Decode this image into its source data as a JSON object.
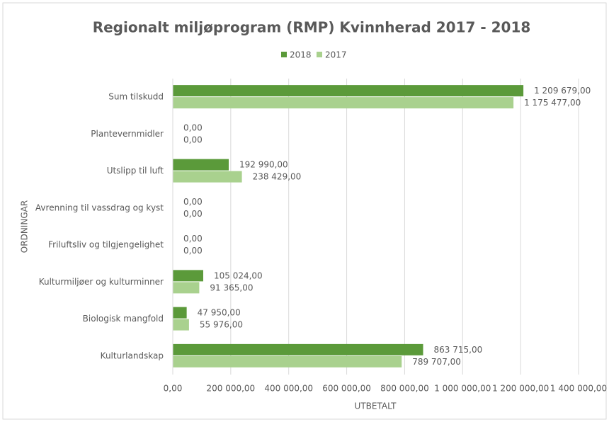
{
  "chart_data": {
    "type": "bar",
    "orientation": "horizontal",
    "title": "Regionalt miljøprogram (RMP)  Kvinnherad 2017 - 2018",
    "x_label": "UTBETALT",
    "y_label": "ORDNINGAR",
    "categories": [
      "Sum tilskudd",
      "Plantevernmidler",
      "Utslipp til luft",
      "Avrenning til vassdrag og kyst",
      "Friluftsliv og tilgjengelighet",
      "Kulturmiljøer og kulturminner",
      "Biologisk mangfold",
      "Kulturlandskap"
    ],
    "series": [
      {
        "name": "2018",
        "color": "#5b9a3a",
        "values": [
          1209679,
          0,
          192990,
          0,
          0,
          105024,
          47950,
          863715
        ],
        "value_labels": [
          "1 209 679,00",
          "0,00",
          "192 990,00",
          "0,00",
          "0,00",
          "105 024,00",
          "47 950,00",
          "863 715,00"
        ]
      },
      {
        "name": "2017",
        "color": "#a9d18e",
        "values": [
          1175477,
          0,
          238429,
          0,
          0,
          91365,
          55976,
          789707
        ],
        "value_labels": [
          "1 175 477,00",
          "0,00",
          "238 429,00",
          "0,00",
          "0,00",
          "91 365,00",
          "55 976,00",
          "789 707,00"
        ]
      }
    ],
    "xlim": [
      0,
      1400000
    ],
    "xticks": [
      {
        "value": 0,
        "label": "0,00"
      },
      {
        "value": 200000,
        "label": "200 000,00"
      },
      {
        "value": 400000,
        "label": "400 000,00"
      },
      {
        "value": 600000,
        "label": "600 000,00"
      },
      {
        "value": 800000,
        "label": "800 000,00"
      },
      {
        "value": 1000000,
        "label": "1 000 000,00"
      },
      {
        "value": 1200000,
        "label": "1 200 000,00"
      },
      {
        "value": 1400000,
        "label": "1 400 000,00"
      }
    ],
    "grid": true,
    "legend": "top"
  }
}
